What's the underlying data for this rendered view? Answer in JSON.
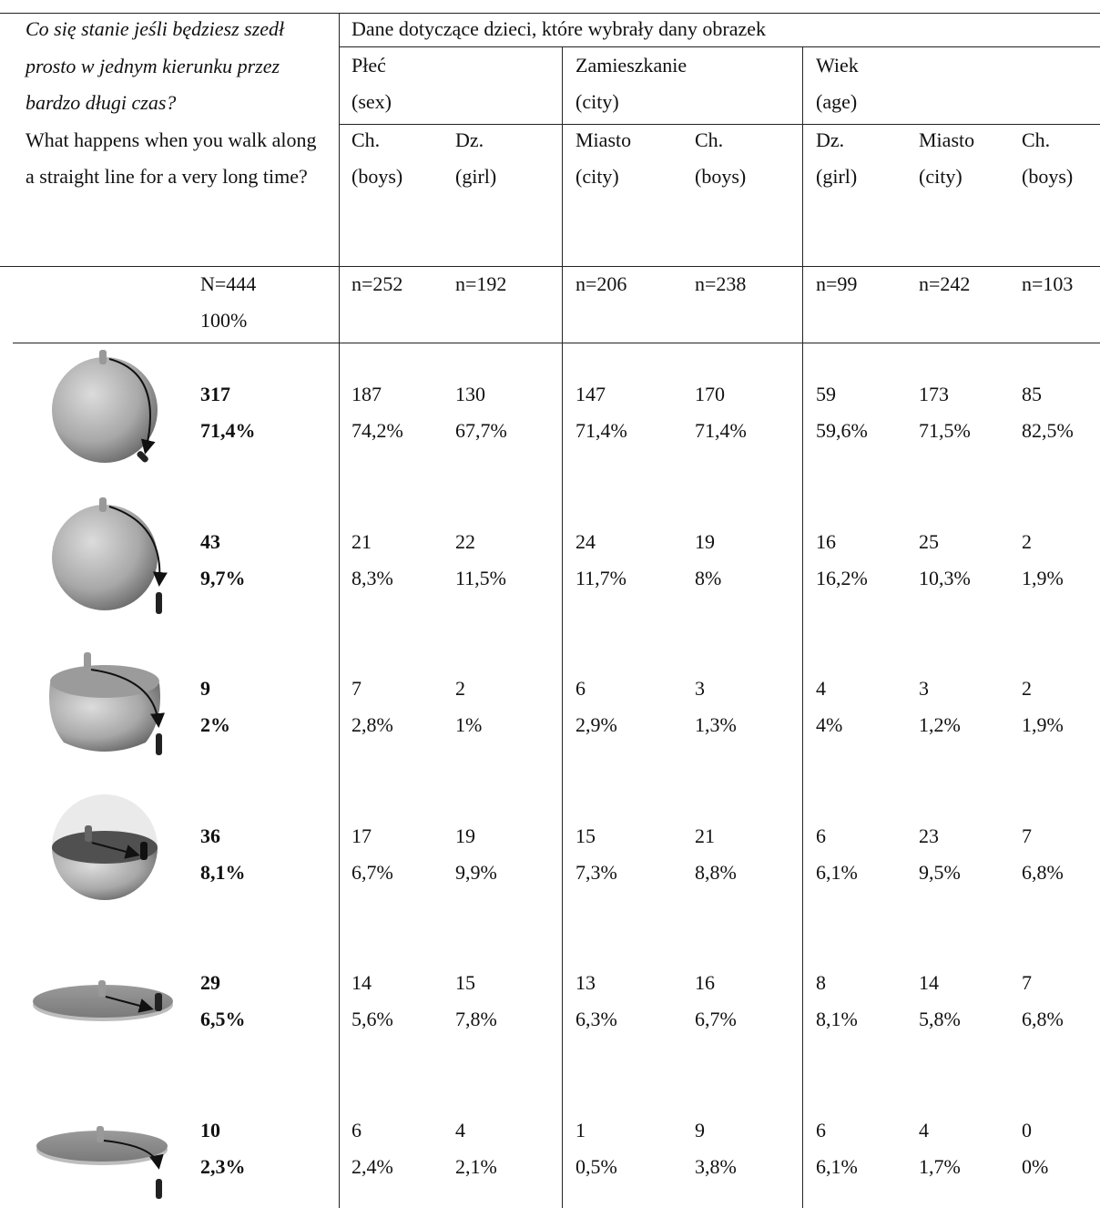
{
  "question": {
    "pl": "Co się stanie jeśli będziesz szedł prosto w jednym kierunku przez bardzo długi czas?",
    "en": "What happens when you walk along a straight line for a very long time?"
  },
  "header": {
    "title": "Dane dotyczące dzieci, które wybrały dany obrazek",
    "groups": [
      {
        "name": "Płeć",
        "sub": "(sex)"
      },
      {
        "name": "Zamieszkanie",
        "sub": "(city)"
      },
      {
        "name": "Wiek",
        "sub": "(age)"
      }
    ],
    "columns": [
      {
        "name": "Ch.",
        "sub": "(boys)"
      },
      {
        "name": "Dz.",
        "sub": "(girl)"
      },
      {
        "name": "Miasto",
        "sub": "(city)"
      },
      {
        "name": "Ch.",
        "sub": "(boys)"
      },
      {
        "name": "Dz.",
        "sub": "(girl)"
      },
      {
        "name": "Miasto",
        "sub": "(city)"
      },
      {
        "name": "Ch.",
        "sub": "(boys)"
      }
    ]
  },
  "totals": {
    "all": [
      "N=444",
      "100%"
    ],
    "columns": [
      "n=252",
      "n=192",
      "n=206",
      "n=238",
      "n=99",
      "n=242",
      "n=103"
    ]
  },
  "rows": [
    {
      "count": "317",
      "percent": "71,4%",
      "cells": [
        [
          "187",
          "74,2%"
        ],
        [
          "130",
          "67,7%"
        ],
        [
          "147",
          "71,4%"
        ],
        [
          "170",
          "71,4%"
        ],
        [
          "59",
          "59,6%"
        ],
        [
          "173",
          "71,5%"
        ],
        [
          "85",
          "82,5%"
        ]
      ]
    },
    {
      "count": "43",
      "percent": "9,7%",
      "cells": [
        [
          "21",
          "8,3%"
        ],
        [
          "22",
          "11,5%"
        ],
        [
          "24",
          "11,7%"
        ],
        [
          "19",
          "8%"
        ],
        [
          "16",
          "16,2%"
        ],
        [
          "25",
          "10,3%"
        ],
        [
          "2",
          "1,9%"
        ]
      ]
    },
    {
      "count": "9",
      "percent": "2%",
      "cells": [
        [
          "7",
          "2,8%"
        ],
        [
          "2",
          "1%"
        ],
        [
          "6",
          "2,9%"
        ],
        [
          "3",
          "1,3%"
        ],
        [
          "4",
          "4%"
        ],
        [
          "3",
          "1,2%"
        ],
        [
          "2",
          "1,9%"
        ]
      ]
    },
    {
      "count": "36",
      "percent": "8,1%",
      "cells": [
        [
          "17",
          "6,7%"
        ],
        [
          "19",
          "9,9%"
        ],
        [
          "15",
          "7,3%"
        ],
        [
          "21",
          "8,8%"
        ],
        [
          "6",
          "6,1%"
        ],
        [
          "23",
          "9,5%"
        ],
        [
          "7",
          "6,8%"
        ]
      ]
    },
    {
      "count": "29",
      "percent": "6,5%",
      "cells": [
        [
          "14",
          "5,6%"
        ],
        [
          "15",
          "7,8%"
        ],
        [
          "13",
          "6,3%"
        ],
        [
          "16",
          "6,7%"
        ],
        [
          "8",
          "8,1%"
        ],
        [
          "14",
          "5,8%"
        ],
        [
          "7",
          "6,8%"
        ]
      ]
    },
    {
      "count": "10",
      "percent": "2,3%",
      "cells": [
        [
          "6",
          "2,4%"
        ],
        [
          "4",
          "2,1%"
        ],
        [
          "1",
          "0,5%"
        ],
        [
          "9",
          "3,8%"
        ],
        [
          "6",
          "6,1%"
        ],
        [
          "4",
          "1,7%"
        ],
        [
          "0",
          "0%"
        ]
      ]
    }
  ]
}
